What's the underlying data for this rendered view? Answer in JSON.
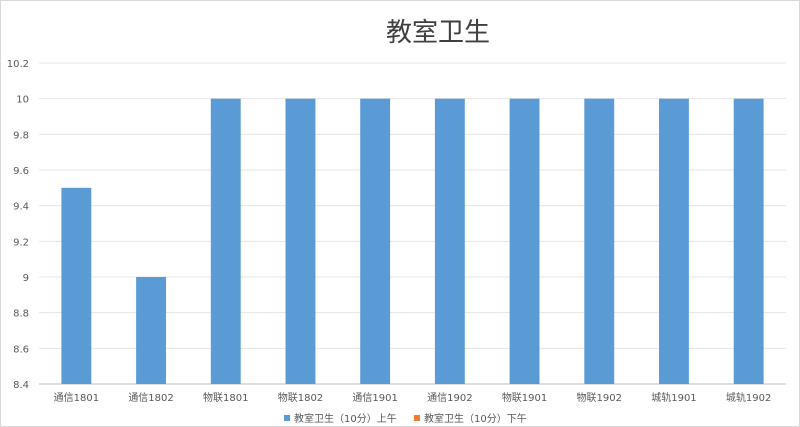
{
  "chart_data": {
    "type": "bar",
    "title": "教室卫生",
    "categories": [
      "通信1801",
      "通信1802",
      "物联1801",
      "物联1802",
      "通信1901",
      "通信1902",
      "物联1901",
      "物联1902",
      "城轨1901",
      "城轨1902"
    ],
    "series": [
      {
        "name": "教室卫生（10分）上午",
        "color": "#5b9bd5",
        "values": [
          9.5,
          9,
          10,
          10,
          10,
          10,
          10,
          10,
          10,
          10
        ]
      },
      {
        "name": "教室卫生（10分）下午",
        "color": "#ed7d31",
        "values": [
          null,
          null,
          null,
          null,
          null,
          null,
          null,
          null,
          null,
          null
        ]
      }
    ],
    "ylim": [
      8.4,
      10.2
    ],
    "yticks": [
      "8.4",
      "8.6",
      "8.8",
      "9",
      "9.2",
      "9.4",
      "9.6",
      "9.8",
      "10",
      "10.2"
    ],
    "grid": true,
    "legend_position": "bottom",
    "xlabel": "",
    "ylabel": ""
  }
}
